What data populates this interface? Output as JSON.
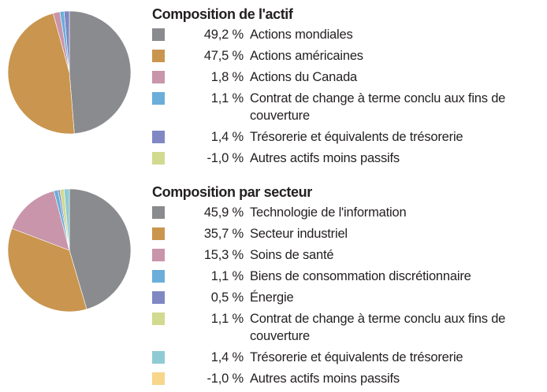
{
  "chart_data": [
    {
      "type": "pie",
      "title": "Composition de l'actif",
      "categories": [
        "Actions mondiales",
        "Actions américaines",
        "Actions du Canada",
        "Contrat de change à terme conclu aux fins de couverture",
        "Trésorerie et équivalents de trésorerie",
        "Autres actifs moins passifs"
      ],
      "values": [
        49.2,
        47.5,
        1.8,
        1.1,
        1.4,
        -1.0
      ],
      "value_labels": [
        "49,2 %",
        "47,5 %",
        "1,8 %",
        "1,1 %",
        "1,4 %",
        "-1,0 %"
      ],
      "colors": [
        "#8a8b8e",
        "#c9954f",
        "#c995aa",
        "#6aaed9",
        "#8088c4",
        "#d1da8f"
      ]
    },
    {
      "type": "pie",
      "title": "Composition par secteur",
      "categories": [
        "Technologie de l'information",
        "Secteur industriel",
        "Soins de santé",
        "Biens de consommation discrétionnaire",
        "Énergie",
        "Contrat de change à terme conclu aux fins de couverture",
        "Trésorerie et équivalents de trésorerie",
        "Autres actifs moins passifs"
      ],
      "values": [
        45.9,
        35.7,
        15.3,
        1.1,
        0.5,
        1.1,
        1.4,
        -1.0
      ],
      "value_labels": [
        "45,9 %",
        "35,7 %",
        "15,3 %",
        "1,1 %",
        "0,5 %",
        "1,1 %",
        "1,4 %",
        "-1,0 %"
      ],
      "colors": [
        "#8a8b8e",
        "#c9954f",
        "#c995aa",
        "#6aaed9",
        "#8088c4",
        "#d1da8f",
        "#8fcbd4",
        "#f7d58a"
      ]
    }
  ]
}
